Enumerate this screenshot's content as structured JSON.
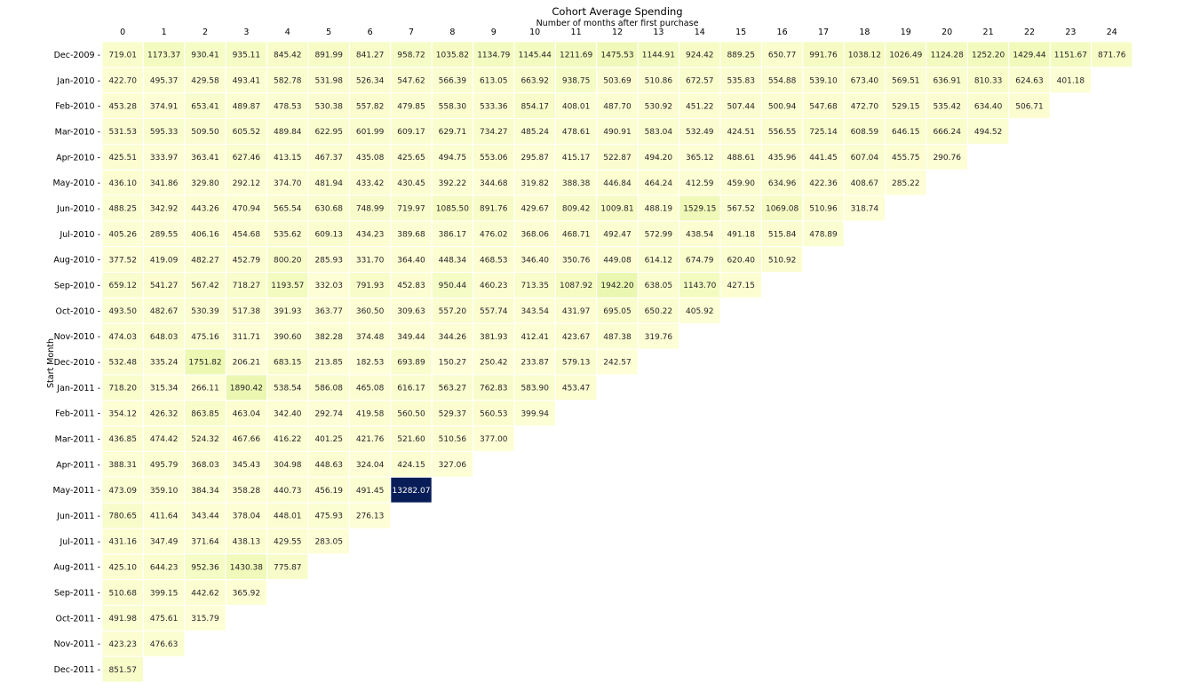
{
  "chart_data": {
    "type": "heatmap",
    "title": "Cohort Average Spending",
    "xlabel": "Number of months after first purchase",
    "ylabel": "Start Month",
    "x": [
      "0",
      "1",
      "2",
      "3",
      "4",
      "5",
      "6",
      "7",
      "8",
      "9",
      "10",
      "11",
      "12",
      "13",
      "14",
      "15",
      "16",
      "17",
      "18",
      "19",
      "20",
      "21",
      "22",
      "23",
      "24"
    ],
    "y": [
      "Dec-2009",
      "Jan-2010",
      "Feb-2010",
      "Mar-2010",
      "Apr-2010",
      "May-2010",
      "Jun-2010",
      "Jul-2010",
      "Aug-2010",
      "Sep-2010",
      "Oct-2010",
      "Nov-2010",
      "Dec-2010",
      "Jan-2011",
      "Feb-2011",
      "Mar-2011",
      "Apr-2011",
      "May-2011",
      "Jun-2011",
      "Jul-2011",
      "Aug-2011",
      "Sep-2011",
      "Oct-2011",
      "Nov-2011",
      "Dec-2011"
    ],
    "values": [
      [
        "719.01",
        "1173.37",
        "930.41",
        "935.11",
        "845.42",
        "891.99",
        "841.27",
        "958.72",
        "1035.82",
        "1134.79",
        "1145.44",
        "1211.69",
        "1475.53",
        "1144.91",
        "924.42",
        "889.25",
        "650.77",
        "991.76",
        "1038.12",
        "1026.49",
        "1124.28",
        "1252.20",
        "1429.44",
        "1151.67",
        "871.76"
      ],
      [
        "422.70",
        "495.37",
        "429.58",
        "493.41",
        "582.78",
        "531.98",
        "526.34",
        "547.62",
        "566.39",
        "613.05",
        "663.92",
        "938.75",
        "503.69",
        "510.86",
        "672.57",
        "535.83",
        "554.88",
        "539.10",
        "673.40",
        "569.51",
        "636.91",
        "810.33",
        "624.63",
        "401.18"
      ],
      [
        "453.28",
        "374.91",
        "653.41",
        "489.87",
        "478.53",
        "530.38",
        "557.82",
        "479.85",
        "558.30",
        "533.36",
        "854.17",
        "408.01",
        "487.70",
        "530.92",
        "451.22",
        "507.44",
        "500.94",
        "547.68",
        "472.70",
        "529.15",
        "535.42",
        "634.40",
        "506.71"
      ],
      [
        "531.53",
        "595.33",
        "509.50",
        "605.52",
        "489.84",
        "622.95",
        "601.99",
        "609.17",
        "629.71",
        "734.27",
        "485.24",
        "478.61",
        "490.91",
        "583.04",
        "532.49",
        "424.51",
        "556.55",
        "725.14",
        "608.59",
        "646.15",
        "666.24",
        "494.52"
      ],
      [
        "425.51",
        "333.97",
        "363.41",
        "627.46",
        "413.15",
        "467.37",
        "435.08",
        "425.65",
        "494.75",
        "553.06",
        "295.87",
        "415.17",
        "522.87",
        "494.20",
        "365.12",
        "488.61",
        "435.96",
        "441.45",
        "607.04",
        "455.75",
        "290.76"
      ],
      [
        "436.10",
        "341.86",
        "329.80",
        "292.12",
        "374.70",
        "481.94",
        "433.42",
        "430.45",
        "392.22",
        "344.68",
        "319.82",
        "388.38",
        "446.84",
        "464.24",
        "412.59",
        "459.90",
        "634.96",
        "422.36",
        "408.67",
        "285.22"
      ],
      [
        "488.25",
        "342.92",
        "443.26",
        "470.94",
        "565.54",
        "630.68",
        "748.99",
        "719.97",
        "1085.50",
        "891.76",
        "429.67",
        "809.42",
        "1009.81",
        "488.19",
        "1529.15",
        "567.52",
        "1069.08",
        "510.96",
        "318.74"
      ],
      [
        "405.26",
        "289.55",
        "406.16",
        "454.68",
        "535.62",
        "609.13",
        "434.23",
        "389.68",
        "386.17",
        "476.02",
        "368.06",
        "468.71",
        "492.47",
        "572.99",
        "438.54",
        "491.18",
        "515.84",
        "478.89"
      ],
      [
        "377.52",
        "419.09",
        "482.27",
        "452.79",
        "800.20",
        "285.93",
        "331.70",
        "364.40",
        "448.34",
        "468.53",
        "346.40",
        "350.76",
        "449.08",
        "614.12",
        "674.79",
        "620.40",
        "510.92"
      ],
      [
        "659.12",
        "541.27",
        "567.42",
        "718.27",
        "1193.57",
        "332.03",
        "791.93",
        "452.83",
        "950.44",
        "460.23",
        "713.35",
        "1087.92",
        "1942.20",
        "638.05",
        "1143.70",
        "427.15"
      ],
      [
        "493.50",
        "482.67",
        "530.39",
        "517.38",
        "391.93",
        "363.77",
        "360.50",
        "309.63",
        "557.20",
        "557.74",
        "343.54",
        "431.97",
        "695.05",
        "650.22",
        "405.92"
      ],
      [
        "474.03",
        "648.03",
        "475.16",
        "311.71",
        "390.60",
        "382.28",
        "374.48",
        "349.44",
        "344.26",
        "381.93",
        "412.41",
        "423.67",
        "487.38",
        "319.76"
      ],
      [
        "532.48",
        "335.24",
        "1751.82",
        "206.21",
        "683.15",
        "213.85",
        "182.53",
        "693.89",
        "150.27",
        "250.42",
        "233.87",
        "579.13",
        "242.57"
      ],
      [
        "718.20",
        "315.34",
        "266.11",
        "1890.42",
        "538.54",
        "586.08",
        "465.08",
        "616.17",
        "563.27",
        "762.83",
        "583.90",
        "453.47"
      ],
      [
        "354.12",
        "426.32",
        "863.85",
        "463.04",
        "342.40",
        "292.74",
        "419.58",
        "560.50",
        "529.37",
        "560.53",
        "399.94"
      ],
      [
        "436.85",
        "474.42",
        "524.32",
        "467.66",
        "416.22",
        "401.25",
        "421.76",
        "521.60",
        "510.56",
        "377.00"
      ],
      [
        "388.31",
        "495.79",
        "368.03",
        "345.43",
        "304.98",
        "448.63",
        "324.04",
        "424.15",
        "327.06"
      ],
      [
        "473.09",
        "359.10",
        "384.34",
        "358.28",
        "440.73",
        "456.19",
        "491.45",
        "13282.07"
      ],
      [
        "780.65",
        "411.64",
        "343.44",
        "378.04",
        "448.01",
        "475.93",
        "276.13"
      ],
      [
        "431.16",
        "347.49",
        "371.64",
        "438.13",
        "429.55",
        "283.05"
      ],
      [
        "425.10",
        "644.23",
        "952.36",
        "1430.38",
        "775.87"
      ],
      [
        "510.68",
        "399.15",
        "442.62",
        "365.92"
      ],
      [
        "491.98",
        "475.61",
        "315.79"
      ],
      [
        "423.23",
        "476.63"
      ],
      [
        "851.57"
      ]
    ],
    "colormap": "YlGnBu",
    "vmin": 150.27,
    "vmax": 13282.07,
    "annotations": true,
    "colorbar": false,
    "grid": false,
    "cell_border_color": "#ffffff",
    "low_text_color": "#262626",
    "high_text_color": "#ffffff"
  }
}
